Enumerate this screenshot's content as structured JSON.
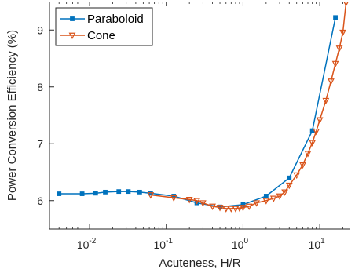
{
  "chart_data": {
    "type": "line",
    "xscale": "log",
    "xlim": [
      0.003,
      25
    ],
    "ylim": [
      5.5,
      9.5
    ],
    "xlabel": "Acuteness, H/R",
    "ylabel": "Power Conversion Efficiency (%)",
    "x_ticks": [
      {
        "value": 0.01,
        "base": "10",
        "exp": "-2"
      },
      {
        "value": 0.1,
        "base": "10",
        "exp": "-1"
      },
      {
        "value": 1,
        "base": "10",
        "exp": "0"
      },
      {
        "value": 10,
        "base": "10",
        "exp": "1"
      }
    ],
    "y_ticks": [
      {
        "value": 6,
        "label": "6"
      },
      {
        "value": 7,
        "label": "7"
      },
      {
        "value": 8,
        "label": "8"
      },
      {
        "value": 9,
        "label": "9"
      }
    ],
    "legend": {
      "position": "top-left"
    },
    "series": [
      {
        "name": "Paraboloid",
        "color": "#0072BD",
        "marker": "square",
        "x": [
          0.004,
          0.008,
          0.012,
          0.016,
          0.024,
          0.032,
          0.045,
          0.0625,
          0.125,
          0.25,
          0.5,
          1,
          2,
          4,
          8,
          16
        ],
        "y": [
          6.12,
          6.12,
          6.13,
          6.15,
          6.16,
          6.16,
          6.15,
          6.13,
          6.08,
          5.96,
          5.89,
          5.93,
          6.08,
          6.4,
          7.23,
          9.22
        ]
      },
      {
        "name": "Cone",
        "color": "#D95319",
        "marker": "triangle-down",
        "x": [
          0.0625,
          0.125,
          0.2,
          0.25,
          0.3,
          0.4,
          0.5,
          0.6,
          0.7,
          0.8,
          0.9,
          1.0,
          1.2,
          1.5,
          2.0,
          2.5,
          3.0,
          3.5,
          4.0,
          5.0,
          6.0,
          7.0,
          8.0,
          9.0,
          10.0,
          12.0,
          14.0,
          16.0,
          18.0,
          20.0,
          22.0
        ],
        "y": [
          6.1,
          6.05,
          6.02,
          6.0,
          5.96,
          5.9,
          5.88,
          5.86,
          5.86,
          5.86,
          5.87,
          5.88,
          5.9,
          5.96,
          6.0,
          6.04,
          6.08,
          6.15,
          6.27,
          6.45,
          6.63,
          6.83,
          7.02,
          7.22,
          7.42,
          7.76,
          8.1,
          8.41,
          8.68,
          8.96,
          9.48
        ]
      }
    ]
  }
}
